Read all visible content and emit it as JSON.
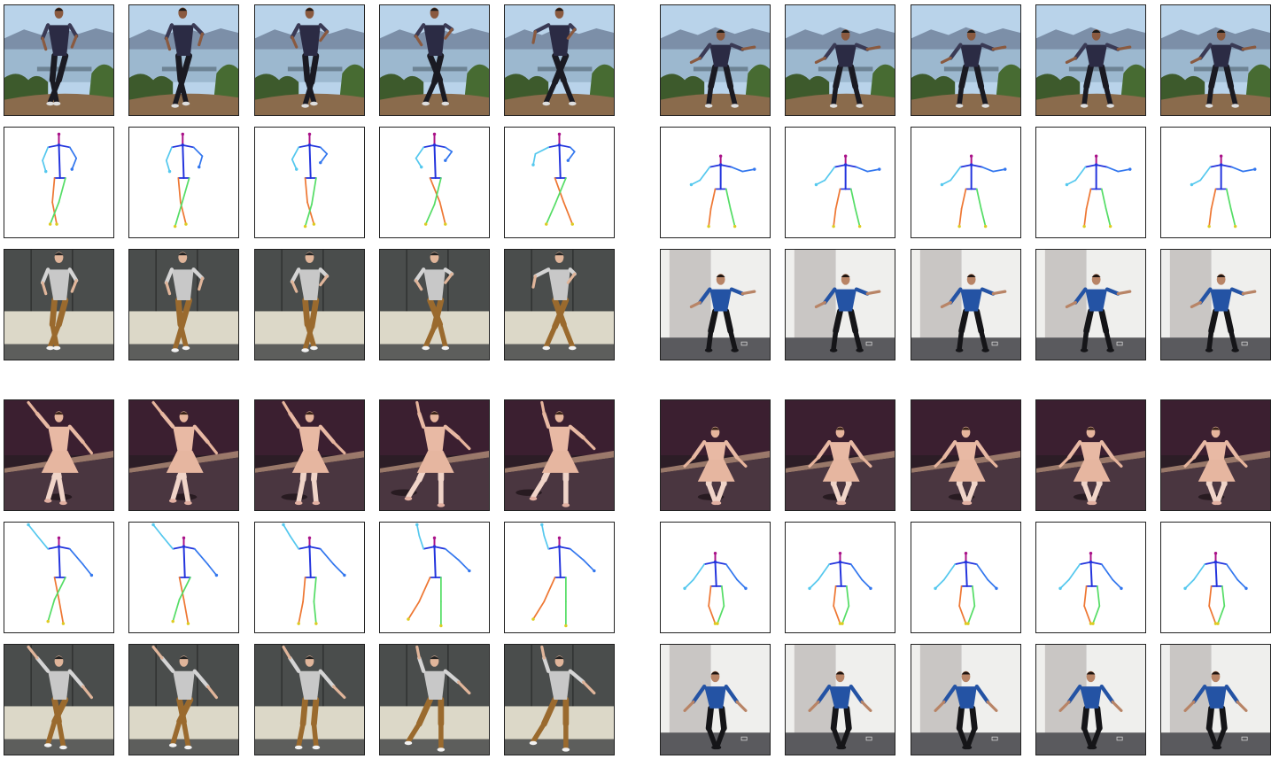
{
  "figure": {
    "panels": [
      {
        "id": "top-left",
        "rows": [
          {
            "role": "source-video",
            "scene": "outdoor-hill",
            "poses": [
              0,
              1,
              2,
              3,
              4
            ]
          },
          {
            "role": "pose-skeleton",
            "poses": [
              0,
              1,
              2,
              3,
              4
            ]
          },
          {
            "role": "generated-target",
            "scene": "office-man",
            "poses": [
              0,
              1,
              2,
              3,
              4
            ]
          }
        ]
      },
      {
        "id": "top-right",
        "rows": [
          {
            "role": "source-video",
            "scene": "outdoor-hill",
            "poses": [
              5,
              5,
              5,
              5,
              5
            ]
          },
          {
            "role": "pose-skeleton",
            "poses": [
              5,
              5,
              5,
              5,
              5
            ]
          },
          {
            "role": "generated-target",
            "scene": "studio-woman",
            "poses": [
              5,
              5,
              5,
              5,
              5
            ]
          }
        ]
      },
      {
        "id": "bottom-left",
        "rows": [
          {
            "role": "source-video",
            "scene": "ballet-stage",
            "poses": [
              6,
              6,
              7,
              8,
              8
            ]
          },
          {
            "role": "pose-skeleton",
            "poses": [
              6,
              6,
              7,
              8,
              8
            ]
          },
          {
            "role": "generated-target",
            "scene": "office-man",
            "poses": [
              6,
              6,
              7,
              8,
              8
            ]
          }
        ]
      },
      {
        "id": "bottom-right",
        "rows": [
          {
            "role": "source-video",
            "scene": "ballet-stage",
            "poses": [
              9,
              9,
              9,
              9,
              9
            ]
          },
          {
            "role": "pose-skeleton",
            "poses": [
              9,
              9,
              9,
              9,
              9
            ]
          },
          {
            "role": "generated-target",
            "scene": "studio-woman",
            "poses": [
              9,
              9,
              9,
              9,
              9
            ]
          }
        ]
      }
    ]
  },
  "colors": {
    "frame_border": "#222222",
    "skeleton_torso": "#2233dd",
    "skeleton_right_arm": "#55c8ee",
    "skeleton_left_arm": "#3377ee",
    "skeleton_right_leg": "#ee7733",
    "skeleton_left_leg": "#55dd66",
    "skeleton_head": "#aa1188"
  }
}
